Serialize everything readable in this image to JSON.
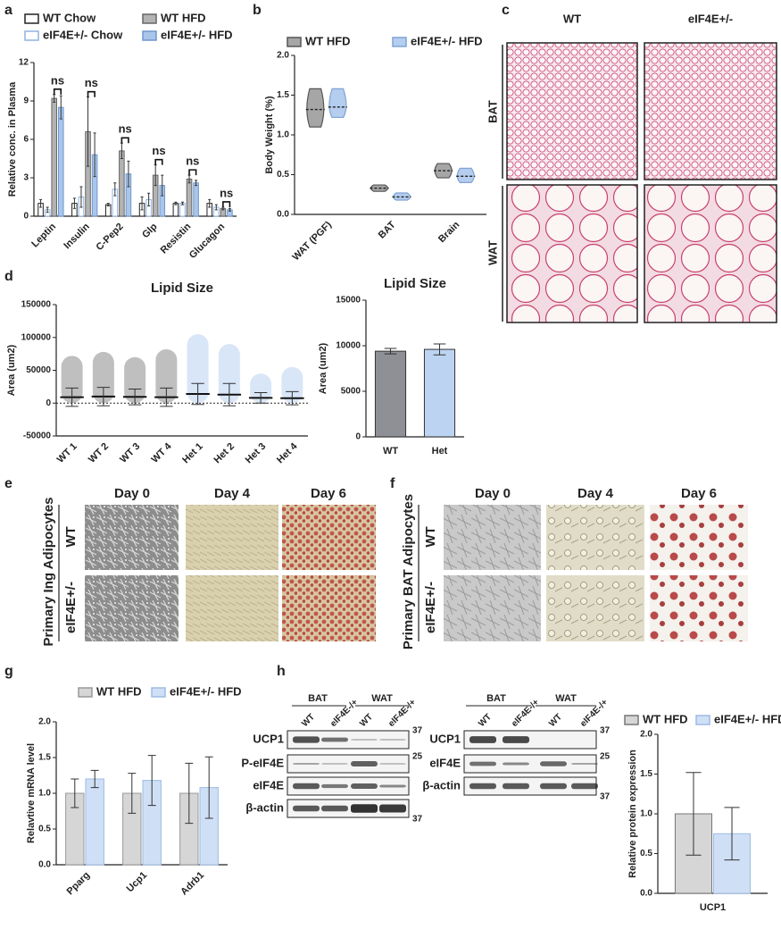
{
  "panel_labels": [
    "a",
    "b",
    "c",
    "d",
    "e",
    "f",
    "g",
    "h"
  ],
  "chart_data": [
    {
      "type": "bar",
      "ylabel": "Relative conc. in Plasma",
      "categories": [
        "Leptin",
        "Insulin",
        "C-Pep2",
        "Glp",
        "Resistin",
        "Glucagon"
      ],
      "series": [
        {
          "name": "WT Chow",
          "color": "#ffffff",
          "edgecolor": "#222222",
          "values": [
            1.0,
            1.0,
            0.9,
            1.0,
            1.0,
            1.0
          ],
          "errors": [
            0.3,
            0.4,
            0.1,
            0.5,
            0.1,
            0.3
          ]
        },
        {
          "name": "eIF4E+/- Chow",
          "color": "#ffffff",
          "edgecolor": "#8fb3e0",
          "values": [
            0.5,
            1.5,
            2.1,
            1.3,
            1.0,
            0.7
          ],
          "errors": [
            0.2,
            0.8,
            0.5,
            0.5,
            0.1,
            0.2
          ]
        },
        {
          "name": "WT HFD",
          "color": "#b3b3b3",
          "edgecolor": "#666666",
          "values": [
            9.2,
            6.6,
            5.1,
            3.2,
            2.9,
            0.6
          ],
          "errors": [
            0.3,
            2.7,
            0.6,
            0.8,
            0.3,
            0.1
          ]
        },
        {
          "name": "eIF4E+/- HFD",
          "color": "#a9c6ea",
          "edgecolor": "#6f97cf",
          "values": [
            8.5,
            4.8,
            3.3,
            2.4,
            2.6,
            0.5
          ],
          "errors": [
            0.9,
            1.7,
            1.0,
            0.8,
            0.2,
            0.1
          ]
        }
      ],
      "annotations": [
        "ns",
        "ns",
        "ns",
        "ns",
        "ns",
        "ns"
      ],
      "ylim": [
        0,
        12
      ],
      "yticks": [
        0,
        3,
        6,
        9,
        12
      ]
    },
    {
      "type": "violin",
      "ylabel": "Body Weight (%)",
      "categories": [
        "WAT (PGF)",
        "BAT",
        "Brain"
      ],
      "series": [
        {
          "name": "WT HFD",
          "color": "#a6a6a6",
          "edgecolor": "#555555",
          "values": [
            1.32,
            0.33,
            0.55
          ],
          "mins": [
            1.1,
            0.29,
            0.46
          ],
          "maxs": [
            1.58,
            0.37,
            0.64
          ]
        },
        {
          "name": "eIF4E+/- HFD",
          "color": "#b5cdee",
          "edgecolor": "#7fa3d6",
          "values": [
            1.35,
            0.22,
            0.48
          ],
          "mins": [
            1.22,
            0.18,
            0.4
          ],
          "maxs": [
            1.58,
            0.27,
            0.58
          ]
        }
      ],
      "ylim": [
        0,
        2
      ],
      "yticks": [
        {
          "value": 0,
          "label": "0.0"
        },
        0.5,
        {
          "value": 1,
          "label": "1.0"
        },
        1.5,
        {
          "value": 2,
          "label": "2.0"
        }
      ]
    },
    {
      "type": "strip",
      "title": "Lipid Size",
      "ylabel": "Area (um2)",
      "categories": [
        "WT 1",
        "WT 2",
        "WT 3",
        "WT 4",
        "Het 1",
        "Het 2",
        "Het 3",
        "Het 4"
      ],
      "colors": [
        "#8a8a8a",
        "#8a8a8a",
        "#8a8a8a",
        "#8a8a8a",
        "#b8d2f0",
        "#b8d2f0",
        "#b8d2f0",
        "#b8d2f0"
      ],
      "values": [
        9000,
        10000,
        9500,
        9000,
        14000,
        13000,
        8000,
        7500
      ],
      "errors": [
        14000,
        14000,
        12000,
        14000,
        16000,
        17000,
        8000,
        10000
      ],
      "maxs": [
        72000,
        78000,
        70000,
        82000,
        105000,
        90000,
        45000,
        55000
      ],
      "ylim": [
        -50000,
        150000
      ],
      "yticks": [
        -50000,
        0,
        50000,
        100000,
        150000
      ]
    },
    {
      "type": "bar",
      "title": "Lipid Size",
      "ylabel": "Area (um2)",
      "categories": [
        "WT",
        "Het"
      ],
      "colors": [
        "#8f8f96",
        "#bcd4f2"
      ],
      "values": [
        9400,
        9600
      ],
      "errors": [
        300,
        600
      ],
      "ylim": [
        0,
        15000
      ],
      "yticks": [
        0,
        5000,
        10000,
        15000
      ]
    },
    {
      "type": "bar",
      "ylabel": "Relavtive mRNA level",
      "categories": [
        "Pparg",
        "Ucp1",
        "Adrb1"
      ],
      "series": [
        {
          "name": "WT HFD",
          "color": "#d6d6d6",
          "edgecolor": "#999999",
          "values": [
            1.0,
            1.0,
            1.0
          ],
          "errors": [
            0.2,
            0.28,
            0.42
          ]
        },
        {
          "name": "eIF4E+/- HFD",
          "color": "#cfe0f6",
          "edgecolor": "#9dbbe4",
          "values": [
            1.2,
            1.18,
            1.08
          ],
          "errors": [
            0.12,
            0.35,
            0.43
          ]
        }
      ],
      "ylim": [
        0,
        2
      ],
      "yticks": [
        {
          "value": 0,
          "label": "0.0"
        },
        0.5,
        {
          "value": 1,
          "label": "1.0"
        },
        1.5,
        {
          "value": 2,
          "label": "2.0"
        }
      ]
    },
    {
      "type": "bar",
      "ylabel": "Relative protein expression",
      "categories": [
        "UCP1"
      ],
      "series": [
        {
          "name": "WT HFD",
          "color": "#d6d6d6",
          "edgecolor": "#777777",
          "values": [
            1.0
          ],
          "errors": [
            0.52
          ]
        },
        {
          "name": "eIF4E+/- HFD",
          "color": "#cfe0f6",
          "edgecolor": "#9dbbe4",
          "values": [
            0.75
          ],
          "errors": [
            0.33
          ]
        }
      ],
      "ylim": [
        0,
        2
      ],
      "yticks": [
        {
          "value": 0,
          "label": "0.0"
        },
        0.5,
        {
          "value": 1,
          "label": "1.0"
        },
        1.5,
        {
          "value": 2,
          "label": "2.0"
        }
      ]
    }
  ],
  "panel_c": {
    "columns": [
      "WT",
      "eIF4E+/-"
    ],
    "rows": [
      "BAT",
      "WAT"
    ]
  },
  "panel_e": {
    "title": "Primary Ing Adipocytes",
    "days": [
      "Day 0",
      "Day 4",
      "Day 6"
    ],
    "rows": [
      "WT",
      "eIF4E+/-"
    ]
  },
  "panel_f": {
    "title": "Primary BAT Adipocytes",
    "days": [
      "Day 0",
      "Day 4",
      "Day 6"
    ],
    "rows": [
      "WT",
      "eIF4E+/-"
    ]
  },
  "panel_h": {
    "blot_left": {
      "groups": [
        "BAT",
        "WAT"
      ],
      "lanes": [
        "WT",
        "eIF4E-/+",
        "WT",
        "eIF4E-/+"
      ],
      "rows": [
        "UCP1",
        "P-eIF4E",
        "eIF4E",
        "β-actin"
      ],
      "markers": [
        37,
        25,
        37
      ]
    },
    "blot_right": {
      "groups": [
        "BAT",
        "WAT"
      ],
      "lanes": [
        "WT",
        "eIF4E-/+",
        "WT",
        "eIF4E-/+"
      ],
      "rows": [
        "UCP1",
        "eIF4E",
        "β-actin"
      ],
      "markers": [
        37,
        25,
        37
      ]
    }
  }
}
